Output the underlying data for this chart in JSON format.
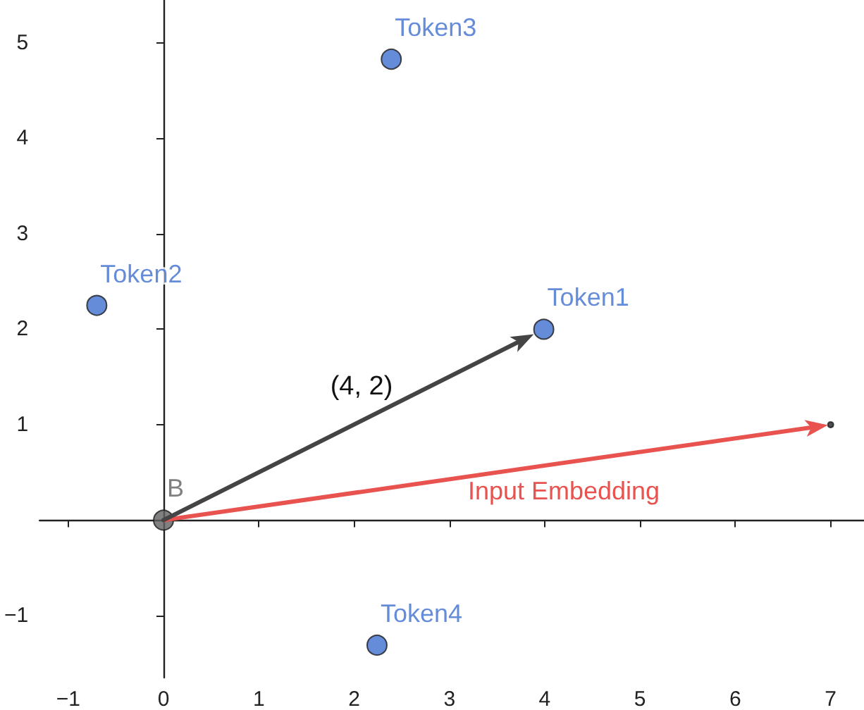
{
  "chart_data": {
    "type": "scatter",
    "xlim": [
      -1.3,
      7.35
    ],
    "ylim": [
      -1.65,
      5.45
    ],
    "xticks": [
      {
        "value": -1,
        "label": "−1"
      },
      0,
      1,
      2,
      3,
      4,
      5,
      6,
      7
    ],
    "yticks": [
      {
        "value": -1,
        "label": "−1"
      },
      {
        "value": 0,
        "label": null
      },
      1,
      2,
      3,
      4,
      5
    ],
    "marker": "circle",
    "series": [
      {
        "type": "scatter",
        "color": "#3f6fcf",
        "x": [
          3.99,
          -0.7,
          2.39,
          2.24
        ],
        "values": [
          2.0,
          2.25,
          4.83,
          -1.31
        ],
        "value_labels": [
          "Token1",
          "Token2",
          "Token3",
          "Token4"
        ]
      },
      {
        "type": "scatter",
        "color": "#606060",
        "x": [
          0
        ],
        "values": [
          0
        ],
        "value_labels": [
          "B"
        ]
      },
      {
        "type": "scatter",
        "color": "#222222",
        "x": [
          7
        ],
        "values": [
          1
        ]
      }
    ],
    "annotations": [
      "(4, 2)",
      "Input Embedding"
    ]
  }
}
